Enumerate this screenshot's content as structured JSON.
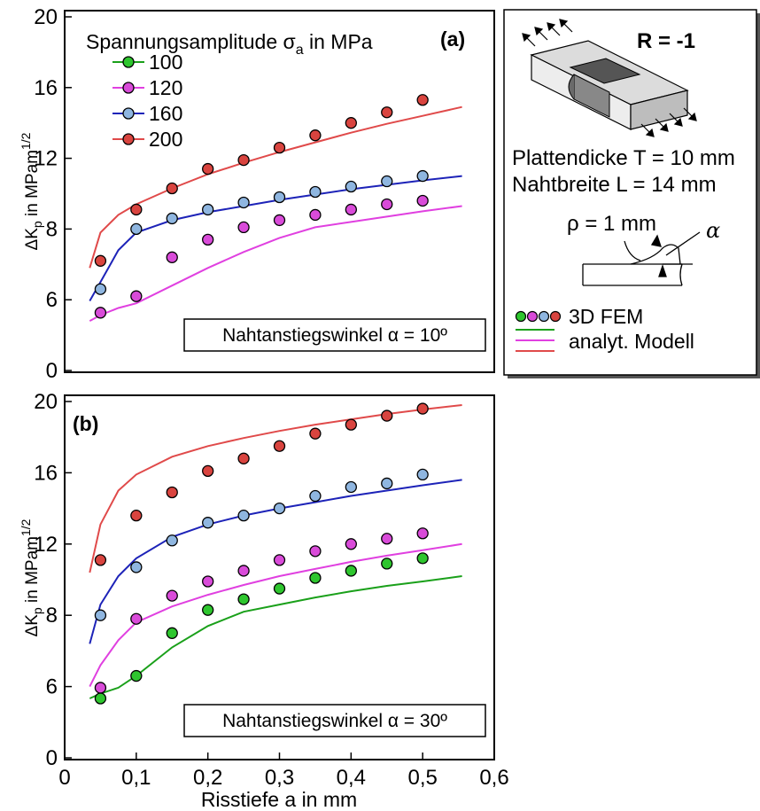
{
  "chart_data": [
    {
      "type": "line",
      "panel_label": "(a)",
      "xlabel": "",
      "ylabel": "ΔKp in MPam1/2",
      "ylabel_parts": {
        "delta_k": "ΔK",
        "sub": "p",
        "unit": " in MPam",
        "sup": "1/2"
      },
      "xlim": [
        0,
        0.6
      ],
      "ylim": [
        0,
        20
      ],
      "y_tick_labels": [
        "0",
        "6",
        "8",
        "12",
        "16",
        "20"
      ],
      "y_tick_values": [
        0,
        6,
        8,
        12,
        16,
        20
      ],
      "legend_title": "Spannungsamplitude σa in MPa",
      "legend_title_parts": {
        "text": "Spannungsamplitude σ",
        "sub": "a",
        "tail": " in MPa"
      },
      "legend_placement": "top-left",
      "annotation": "Nahtanstiegswinkel α = 10º",
      "series": [
        {
          "name": "100",
          "color": "#1aa01a",
          "marker_color": "#2ec62e",
          "x": [],
          "y": [],
          "line_x": [],
          "line_y": []
        },
        {
          "name": "120",
          "color": "#e040e0",
          "marker_color": "#d94bd9",
          "x": [
            0.05,
            0.1,
            0.15,
            0.2,
            0.25,
            0.3,
            0.35,
            0.4,
            0.45,
            0.5
          ],
          "y": [
            4.9,
            6.1,
            7.2,
            7.7,
            8.1,
            8.5,
            8.8,
            9.1,
            9.4,
            9.6
          ],
          "line_x": [
            0.035,
            0.05,
            0.075,
            0.1,
            0.15,
            0.2,
            0.25,
            0.3,
            0.35,
            0.4,
            0.45,
            0.5,
            0.555
          ],
          "line_y": [
            4.2,
            4.7,
            5.3,
            5.7,
            6.4,
            6.9,
            7.35,
            7.75,
            8.1,
            8.4,
            8.7,
            9.0,
            9.3
          ]
        },
        {
          "name": "160",
          "color": "#1d23b8",
          "marker_color": "#8fb6e0",
          "x": [
            0.05,
            0.1,
            0.15,
            0.2,
            0.25,
            0.3,
            0.35,
            0.4,
            0.45,
            0.5
          ],
          "y": [
            6.3,
            8.0,
            8.6,
            9.1,
            9.5,
            9.8,
            10.1,
            10.4,
            10.7,
            11.0
          ],
          "line_x": [
            0.035,
            0.05,
            0.075,
            0.1,
            0.15,
            0.2,
            0.25,
            0.3,
            0.35,
            0.4,
            0.45,
            0.5,
            0.555
          ],
          "line_y": [
            5.9,
            6.5,
            7.4,
            7.9,
            8.5,
            8.95,
            9.3,
            9.65,
            9.95,
            10.25,
            10.5,
            10.75,
            11.0
          ]
        },
        {
          "name": "200",
          "color": "#e04a4a",
          "marker_color": "#d9443f",
          "x": [
            0.05,
            0.1,
            0.15,
            0.2,
            0.25,
            0.3,
            0.35,
            0.4,
            0.45,
            0.5
          ],
          "y": [
            7.1,
            9.1,
            10.3,
            11.4,
            11.9,
            12.6,
            13.3,
            14.0,
            14.6,
            15.3
          ],
          "line_x": [
            0.035,
            0.05,
            0.075,
            0.1,
            0.15,
            0.2,
            0.25,
            0.3,
            0.35,
            0.4,
            0.45,
            0.5,
            0.555
          ],
          "line_y": [
            6.9,
            7.9,
            8.8,
            9.4,
            10.3,
            11.1,
            11.75,
            12.35,
            12.9,
            13.45,
            13.95,
            14.4,
            14.9
          ]
        }
      ]
    },
    {
      "type": "line",
      "panel_label": "(b)",
      "xlabel": "Risstiefe a in mm",
      "ylabel": "ΔKp in MPam1/2",
      "ylabel_parts": {
        "delta_k": "ΔK",
        "sub": "p",
        "unit": " in MPam",
        "sup": "1/2"
      },
      "xlim": [
        0,
        0.6
      ],
      "ylim": [
        0,
        20
      ],
      "x_tick_labels": [
        "0",
        "0,1",
        "0,2",
        "0,3",
        "0,4",
        "0,5",
        "0,6"
      ],
      "x_tick_values": [
        0,
        0.1,
        0.2,
        0.3,
        0.4,
        0.5,
        0.6
      ],
      "y_tick_labels": [
        "0",
        "6",
        "8",
        "12",
        "16",
        "20"
      ],
      "y_tick_values": [
        0,
        6,
        8,
        12,
        16,
        20
      ],
      "annotation": "Nahtanstiegswinkel α = 30º",
      "series": [
        {
          "name": "100",
          "color": "#1aa01a",
          "marker_color": "#2ec62e",
          "x": [
            0.05,
            0.1,
            0.15,
            0.2,
            0.25,
            0.3,
            0.35,
            0.4,
            0.45,
            0.5
          ],
          "y": [
            5.0,
            6.3,
            7.5,
            8.3,
            8.9,
            9.5,
            10.1,
            10.5,
            10.9,
            11.2
          ],
          "line_x": [
            0.035,
            0.05,
            0.075,
            0.1,
            0.15,
            0.2,
            0.25,
            0.3,
            0.35,
            0.4,
            0.45,
            0.5,
            0.555
          ],
          "line_y": [
            5.0,
            5.4,
            5.9,
            6.3,
            7.1,
            7.7,
            8.2,
            8.6,
            9.0,
            9.35,
            9.65,
            9.9,
            10.2
          ]
        },
        {
          "name": "120",
          "color": "#e040e0",
          "marker_color": "#d94bd9",
          "x": [
            0.05,
            0.1,
            0.15,
            0.2,
            0.25,
            0.3,
            0.35,
            0.4,
            0.45,
            0.5
          ],
          "y": [
            5.9,
            7.9,
            9.1,
            9.9,
            10.5,
            11.1,
            11.6,
            12.0,
            12.3,
            12.6
          ],
          "line_x": [
            0.035,
            0.05,
            0.075,
            0.1,
            0.15,
            0.2,
            0.25,
            0.3,
            0.35,
            0.4,
            0.45,
            0.5,
            0.555
          ],
          "line_y": [
            6.0,
            6.6,
            7.3,
            7.8,
            8.5,
            9.15,
            9.7,
            10.2,
            10.6,
            11.0,
            11.35,
            11.65,
            12.0
          ]
        },
        {
          "name": "160",
          "color": "#1d23b8",
          "marker_color": "#8fb6e0",
          "x": [
            0.05,
            0.1,
            0.15,
            0.2,
            0.25,
            0.3,
            0.35,
            0.4,
            0.45,
            0.5
          ],
          "y": [
            8.0,
            10.7,
            12.2,
            13.2,
            13.6,
            14.0,
            14.7,
            15.2,
            15.4,
            15.9
          ],
          "line_x": [
            0.035,
            0.05,
            0.075,
            0.1,
            0.15,
            0.2,
            0.25,
            0.3,
            0.35,
            0.4,
            0.45,
            0.5,
            0.555
          ],
          "line_y": [
            7.2,
            8.6,
            10.2,
            11.2,
            12.4,
            13.1,
            13.6,
            14.0,
            14.35,
            14.7,
            15.0,
            15.3,
            15.6
          ]
        },
        {
          "name": "200",
          "color": "#e04a4a",
          "marker_color": "#d9443f",
          "x": [
            0.05,
            0.1,
            0.15,
            0.2,
            0.25,
            0.3,
            0.35,
            0.4,
            0.45,
            0.5
          ],
          "y": [
            11.1,
            13.6,
            14.9,
            16.1,
            16.8,
            17.5,
            18.2,
            18.7,
            19.2,
            19.6
          ],
          "line_x": [
            0.035,
            0.05,
            0.075,
            0.1,
            0.15,
            0.2,
            0.25,
            0.3,
            0.35,
            0.4,
            0.45,
            0.5,
            0.555
          ],
          "line_y": [
            10.4,
            13.1,
            15.0,
            15.9,
            16.9,
            17.5,
            17.95,
            18.35,
            18.7,
            19.0,
            19.3,
            19.55,
            19.8
          ]
        }
      ]
    }
  ],
  "info_box": {
    "ratio": "R = -1",
    "plate_thickness": "Plattendicke T = 10 mm",
    "seam_width": "Nahtbreite L = 14 mm",
    "radius": "ρ = 1 mm",
    "alpha": "α",
    "legend_fem": "3D FEM",
    "legend_model": "analyt. Modell",
    "marker_colors": [
      "#2ec62e",
      "#d94bd9",
      "#8fb6e0",
      "#d9443f"
    ],
    "line_colors": [
      "#1aa01a",
      "#e040e0",
      "#e04a4a"
    ]
  }
}
